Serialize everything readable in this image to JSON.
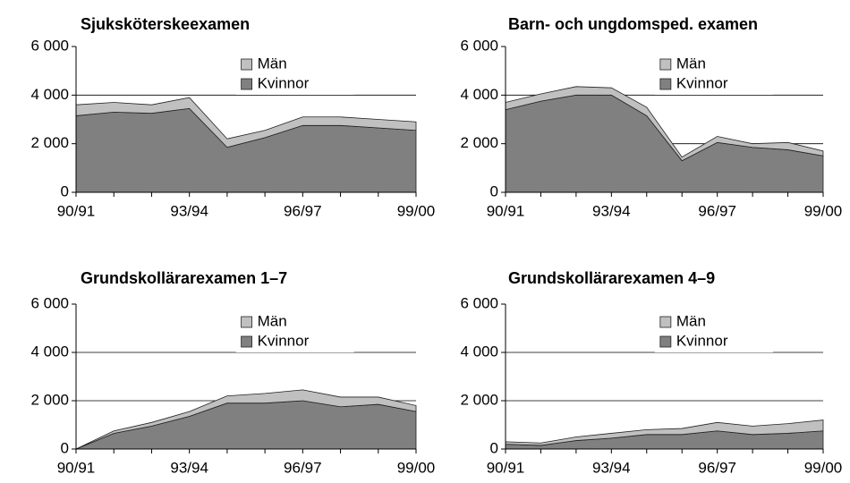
{
  "chart_data": [
    {
      "type": "area",
      "title": "Sjuksköterskeexamen",
      "stacked": true,
      "grid": true,
      "legend": "top",
      "categories": [
        "90/91",
        null,
        null,
        "93/94",
        null,
        null,
        "96/97",
        null,
        null,
        "99/00"
      ],
      "series": [
        {
          "name": "Kvinnor",
          "color": "#808080",
          "values": [
            3150,
            3300,
            3250,
            3450,
            1850,
            2250,
            2750,
            2750,
            2650,
            2550
          ]
        },
        {
          "name": "Män",
          "color": "#c0c0c0",
          "values": [
            450,
            400,
            350,
            450,
            350,
            300,
            350,
            350,
            350,
            350
          ]
        }
      ],
      "ylim": [
        0,
        6000
      ],
      "yticks": [
        0,
        {
          "value": 2000,
          "label": "2 000"
        },
        {
          "value": 4000,
          "label": "4 000"
        },
        {
          "value": 6000,
          "label": "6 000"
        }
      ]
    },
    {
      "type": "area",
      "title": "Barn- och ungdomsped. examen",
      "stacked": true,
      "grid": true,
      "legend": "top",
      "categories": [
        "90/91",
        null,
        null,
        "93/94",
        null,
        null,
        "96/97",
        null,
        null,
        "99/00"
      ],
      "series": [
        {
          "name": "Kvinnor",
          "color": "#808080",
          "values": [
            3400,
            3750,
            4000,
            4000,
            3150,
            1300,
            2050,
            1850,
            1750,
            1500
          ]
        },
        {
          "name": "Män",
          "color": "#c0c0c0",
          "values": [
            300,
            300,
            350,
            300,
            350,
            150,
            250,
            150,
            300,
            200
          ]
        }
      ],
      "ylim": [
        0,
        6000
      ],
      "yticks": [
        0,
        {
          "value": 2000,
          "label": "2 000"
        },
        {
          "value": 4000,
          "label": "4 000"
        },
        {
          "value": 6000,
          "label": "6 000"
        }
      ]
    },
    {
      "type": "area",
      "title": "Grundskollärarexamen 1–7",
      "stacked": true,
      "grid": true,
      "legend": "top",
      "categories": [
        "90/91",
        null,
        null,
        "93/94",
        null,
        null,
        "96/97",
        null,
        null,
        "99/00"
      ],
      "series": [
        {
          "name": "Kvinnor",
          "color": "#808080",
          "values": [
            0,
            650,
            950,
            1350,
            1900,
            1900,
            2000,
            1750,
            1850,
            1550
          ]
        },
        {
          "name": "Män",
          "color": "#c0c0c0",
          "values": [
            0,
            100,
            150,
            200,
            300,
            400,
            450,
            400,
            300,
            250
          ]
        }
      ],
      "ylim": [
        0,
        6000
      ],
      "yticks": [
        0,
        {
          "value": 2000,
          "label": "2 000"
        },
        {
          "value": 4000,
          "label": "4 000"
        },
        {
          "value": 6000,
          "label": "6 000"
        }
      ]
    },
    {
      "type": "area",
      "title": "Grundskollärarexamen 4–9",
      "stacked": true,
      "grid": true,
      "legend": "top",
      "categories": [
        "90/91",
        null,
        null,
        "93/94",
        null,
        null,
        "96/97",
        null,
        null,
        "99/00"
      ],
      "series": [
        {
          "name": "Kvinnor",
          "color": "#808080",
          "values": [
            200,
            150,
            350,
            450,
            600,
            600,
            750,
            600,
            650,
            750
          ]
        },
        {
          "name": "Män",
          "color": "#c0c0c0",
          "values": [
            100,
            100,
            150,
            200,
            200,
            250,
            350,
            350,
            400,
            450
          ]
        }
      ],
      "ylim": [
        0,
        6000
      ],
      "yticks": [
        0,
        {
          "value": 2000,
          "label": "2 000"
        },
        {
          "value": 4000,
          "label": "4 000"
        },
        {
          "value": 6000,
          "label": "6 000"
        }
      ]
    }
  ]
}
